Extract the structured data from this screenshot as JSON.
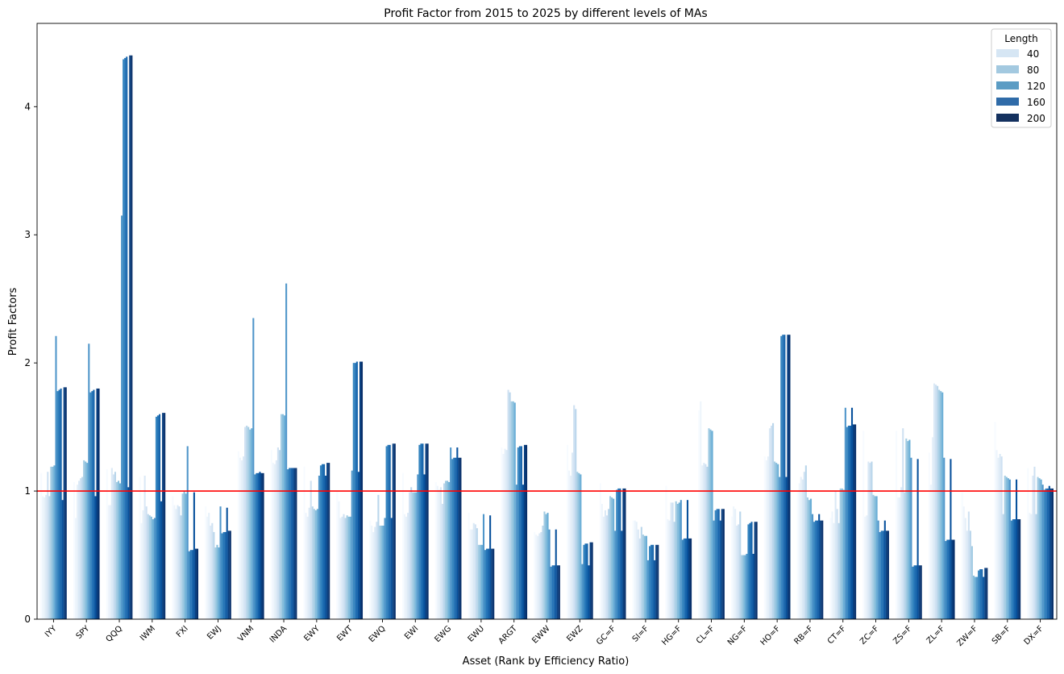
{
  "chart_data": {
    "type": "bar",
    "title": "Profit Factor from 2015 to 2025 by different levels of MAs",
    "xlabel": "Asset (Rank by Efficiency Ratio)",
    "ylabel": "Profit Factors",
    "ylim": [
      0,
      4.65
    ],
    "yticks": [
      0,
      1,
      2,
      3,
      4
    ],
    "reference_line": {
      "y": 1,
      "color": "#ff0000"
    },
    "legend": {
      "title": "Length",
      "placement": "top-right"
    },
    "categories": [
      "IYY",
      "SPY",
      "QQQ",
      "IWM",
      "FXI",
      "EWJ",
      "VNM",
      "INDA",
      "EWY",
      "EWT",
      "EWQ",
      "EWI",
      "EWG",
      "EWU",
      "ARGT",
      "EWW",
      "EWZ",
      "GC=F",
      "SI=F",
      "HG=F",
      "CL=F",
      "NG=F",
      "HO=F",
      "RB=F",
      "CT=F",
      "ZC=F",
      "ZS=F",
      "ZL=F",
      "ZW=F",
      "SB=F",
      "DX=F"
    ],
    "series_colors": [
      "#f7fbff",
      "#eef5fc",
      "#e6f0f9",
      "#dbe9f6",
      "#cfe1f2",
      "#bad6eb",
      "#a3cce3",
      "#88bedc",
      "#6aaed6",
      "#5096ca",
      "#3887c0",
      "#2474b7",
      "#1664ab",
      "#08519c",
      "#083f80",
      "#08306b"
    ],
    "series": [
      {
        "name": "",
        "values": [
          1.14,
          1.07,
          1.17,
          1.11,
          0.96,
          0.88,
          1.31,
          1.32,
          1.19,
          1.0,
          0.77,
          1.14,
          1.07,
          0.83,
          1.34,
          0.68,
          1.36,
          1.06,
          0.77,
          1.04,
          1.63,
          0.8,
          1.27,
          1.0,
          0.79,
          1.47,
          1.47,
          1.3,
          0.99,
          1.54,
          1.18
        ]
      },
      {
        "name": "",
        "values": [
          0.96,
          0.79,
          0.89,
          0.75,
          0.89,
          0.8,
          1.26,
          1.22,
          0.83,
          0.92,
          0.73,
          0.82,
          1.04,
          0.7,
          1.29,
          0.66,
          1.16,
          0.9,
          0.77,
          0.78,
          1.7,
          0.88,
          1.24,
          1.06,
          0.84,
          0.8,
          0.95,
          1.05,
          0.88,
          1.32,
          0.83
        ]
      },
      {
        "name": "",
        "values": [
          0.95,
          1.05,
          0.89,
          0.85,
          0.86,
          0.83,
          1.24,
          1.21,
          0.8,
          0.79,
          0.68,
          0.8,
          1.01,
          0.7,
          1.33,
          0.65,
          1.12,
          0.8,
          0.76,
          0.77,
          1.2,
          0.86,
          1.27,
          1.11,
          0.75,
          0.81,
          0.95,
          1.42,
          0.79,
          1.26,
          0.82
        ]
      },
      {
        "name": "",
        "values": [
          0.97,
          1.08,
          1.18,
          1.12,
          0.89,
          0.73,
          1.27,
          1.24,
          0.87,
          0.8,
          0.72,
          0.83,
          1.03,
          0.75,
          1.32,
          0.67,
          1.3,
          0.85,
          0.7,
          0.91,
          1.22,
          0.73,
          1.49,
          1.09,
          1.0,
          1.23,
          1.03,
          1.84,
          0.69,
          1.29,
          1.12
        ]
      },
      {
        "name": "40",
        "values": [
          1.15,
          1.1,
          1.13,
          0.88,
          0.88,
          0.75,
          1.5,
          1.34,
          1.08,
          0.82,
          0.76,
          0.99,
          0.9,
          0.74,
          1.79,
          0.68,
          1.67,
          0.81,
          0.63,
          0.91,
          1.21,
          0.74,
          1.51,
          1.15,
          0.86,
          1.22,
          1.49,
          1.83,
          0.84,
          1.27,
          1.19
        ]
      },
      {
        "name": "80",
        "values": [
          0.96,
          1.11,
          1.15,
          0.82,
          0.81,
          0.68,
          1.51,
          1.32,
          0.88,
          0.79,
          0.97,
          1.03,
          1.06,
          0.71,
          1.77,
          0.73,
          1.64,
          0.86,
          0.72,
          0.76,
          1.19,
          0.84,
          1.53,
          1.2,
          0.75,
          1.23,
          0.99,
          1.82,
          0.69,
          0.82,
          0.82
        ]
      },
      {
        "name": "120",
        "values": [
          1.19,
          1.24,
          1.07,
          0.81,
          0.98,
          0.56,
          1.5,
          1.6,
          0.86,
          0.81,
          0.73,
          0.99,
          1.08,
          0.58,
          1.7,
          0.84,
          1.15,
          0.96,
          0.66,
          0.92,
          1.49,
          0.5,
          1.23,
          0.95,
          1.02,
          0.97,
          1.41,
          1.79,
          0.57,
          1.12,
          1.11
        ]
      },
      {
        "name": "",
        "values": [
          1.19,
          1.23,
          1.08,
          0.8,
          1.0,
          0.58,
          1.48,
          1.6,
          0.85,
          0.8,
          0.73,
          0.99,
          1.08,
          0.58,
          1.7,
          0.82,
          1.14,
          0.95,
          0.65,
          0.9,
          1.48,
          0.5,
          1.22,
          0.93,
          1.02,
          0.96,
          1.39,
          1.78,
          0.34,
          1.11,
          1.1
        ]
      },
      {
        "name": "",
        "values": [
          1.2,
          1.22,
          1.06,
          0.78,
          0.98,
          0.56,
          1.49,
          1.59,
          0.86,
          0.8,
          0.73,
          0.99,
          1.07,
          0.58,
          1.69,
          0.83,
          1.13,
          0.94,
          0.65,
          0.91,
          1.47,
          0.5,
          1.21,
          0.94,
          1.01,
          0.96,
          1.4,
          1.77,
          0.33,
          1.1,
          1.09
        ]
      },
      {
        "name": "",
        "values": [
          2.21,
          2.15,
          3.15,
          0.79,
          1.35,
          0.88,
          2.35,
          2.62,
          1.12,
          1.16,
          0.79,
          1.13,
          1.34,
          0.82,
          1.05,
          0.7,
          0.43,
          0.69,
          0.46,
          0.93,
          0.77,
          0.51,
          1.11,
          0.82,
          1.65,
          0.77,
          1.26,
          1.26,
          0.33,
          1.09,
          1.05
        ]
      },
      {
        "name": "",
        "values": [
          1.78,
          1.77,
          4.37,
          1.58,
          0.53,
          0.67,
          1.13,
          1.17,
          1.2,
          2.0,
          1.35,
          1.36,
          1.25,
          0.54,
          1.34,
          0.41,
          0.58,
          1.01,
          0.57,
          0.62,
          0.85,
          0.74,
          2.21,
          0.76,
          1.5,
          0.68,
          0.41,
          0.61,
          0.38,
          0.77,
          1.01
        ]
      },
      {
        "name": "",
        "values": [
          1.79,
          1.78,
          4.38,
          1.59,
          0.54,
          0.68,
          1.14,
          1.18,
          1.21,
          2.0,
          1.36,
          1.37,
          1.26,
          0.55,
          1.35,
          0.42,
          0.59,
          1.02,
          0.58,
          0.63,
          0.86,
          0.75,
          2.22,
          0.77,
          1.51,
          0.69,
          0.42,
          0.62,
          0.39,
          0.78,
          1.02
        ]
      },
      {
        "name": "",
        "values": [
          1.8,
          1.79,
          4.39,
          1.6,
          0.54,
          0.68,
          1.14,
          1.18,
          1.21,
          2.01,
          1.36,
          1.37,
          1.26,
          0.55,
          1.35,
          0.42,
          0.59,
          1.02,
          0.58,
          0.63,
          0.86,
          0.76,
          2.22,
          0.77,
          1.51,
          0.69,
          0.42,
          0.62,
          0.39,
          0.78,
          1.02
        ]
      },
      {
        "name": "160",
        "values": [
          0.93,
          0.96,
          1.03,
          0.92,
          0.99,
          0.87,
          1.15,
          1.18,
          1.12,
          1.15,
          0.79,
          1.13,
          1.34,
          0.81,
          1.05,
          0.7,
          0.42,
          0.69,
          0.46,
          0.93,
          0.77,
          0.51,
          1.11,
          0.82,
          1.65,
          0.77,
          1.25,
          1.25,
          0.33,
          1.09,
          1.04
        ]
      },
      {
        "name": "",
        "values": [
          1.81,
          1.8,
          4.4,
          1.61,
          0.55,
          0.69,
          1.14,
          1.18,
          1.22,
          2.01,
          1.37,
          1.37,
          1.26,
          0.55,
          1.36,
          0.42,
          0.6,
          1.02,
          0.58,
          0.63,
          0.86,
          0.76,
          2.22,
          0.77,
          1.52,
          0.69,
          0.42,
          0.62,
          0.4,
          0.78,
          1.02
        ]
      },
      {
        "name": "200",
        "values": [
          1.81,
          1.8,
          4.4,
          1.61,
          0.55,
          0.69,
          1.14,
          1.18,
          1.22,
          2.01,
          1.37,
          1.37,
          1.26,
          0.55,
          1.36,
          0.42,
          0.6,
          1.02,
          0.58,
          0.63,
          0.86,
          0.76,
          2.22,
          0.77,
          1.52,
          0.69,
          0.42,
          0.62,
          0.4,
          0.78,
          1.02
        ]
      }
    ],
    "legend_entries": [
      {
        "name": "40",
        "color": "#d6e6f4"
      },
      {
        "name": "80",
        "color": "#a3c9e0"
      },
      {
        "name": "120",
        "color": "#5b9cc4"
      },
      {
        "name": "160",
        "color": "#2f6ba8"
      },
      {
        "name": "200",
        "color": "#14315f"
      }
    ]
  }
}
